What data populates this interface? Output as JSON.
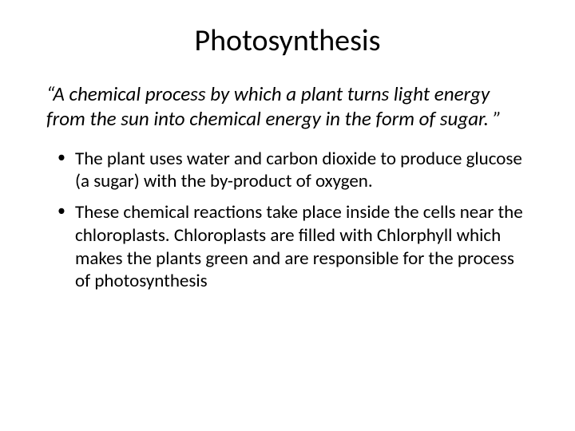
{
  "title": "Photosynthesis",
  "definition": "“A  chemical process by which a plant turns light energy from the sun into chemical energy in the form of sugar. ”",
  "bullets": [
    "The plant uses water and carbon dioxide to produce glucose (a sugar) with the by-product of oxygen.",
    "These chemical reactions take place inside the cells near the chloroplasts.  Chloroplasts are filled with Chlorphyll which makes the plants green and are responsible for the process of photosynthesis"
  ],
  "styling": {
    "background_color": "#ffffff",
    "text_color": "#000000",
    "font_family": "Calibri",
    "title_fontsize": 38,
    "title_weight": 400,
    "title_align": "center",
    "definition_fontsize": 25,
    "definition_style": "italic",
    "bullet_fontsize": 23,
    "bullet_marker": "•",
    "line_height": 1.25,
    "slide_width": 720,
    "slide_height": 540
  }
}
